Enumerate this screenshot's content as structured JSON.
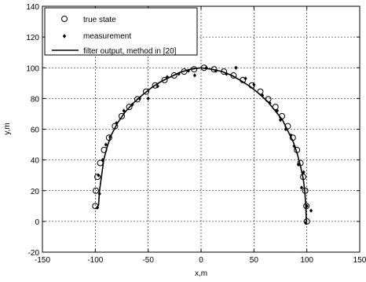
{
  "chart_data": {
    "type": "scatter",
    "xlabel": "x,m",
    "ylabel": "y,m",
    "xlim": [
      -150,
      150
    ],
    "ylim": [
      -20,
      140
    ],
    "xticks": [
      -150,
      -100,
      -50,
      0,
      50,
      100,
      150
    ],
    "yticks": [
      -20,
      0,
      20,
      40,
      60,
      80,
      100,
      120,
      140
    ],
    "xtick_labels": [
      "-150",
      "-100",
      "-50",
      "0",
      "50",
      "100",
      "150"
    ],
    "ytick_labels": [
      "-20",
      "0",
      "20",
      "40",
      "60",
      "80",
      "100",
      "120",
      "140"
    ],
    "grid": true,
    "legend_placement": "top-left",
    "series": [
      {
        "name": "true state",
        "marker": "circle",
        "points": [
          [
            -100,
            10
          ],
          [
            -99.5,
            20
          ],
          [
            -98,
            29
          ],
          [
            -95.4,
            38
          ],
          [
            -91.7,
            46.5
          ],
          [
            -87,
            54.5
          ],
          [
            -81.4,
            62
          ],
          [
            -75,
            68.5
          ],
          [
            -67.9,
            74.5
          ],
          [
            -60.2,
            79.5
          ],
          [
            -52,
            84.5
          ],
          [
            -43.4,
            88.5
          ],
          [
            -34.5,
            92
          ],
          [
            -25.4,
            95
          ],
          [
            -16,
            97.5
          ],
          [
            -6.6,
            99
          ],
          [
            2.9,
            100
          ],
          [
            12.3,
            99
          ],
          [
            21.6,
            97.5
          ],
          [
            30.7,
            95
          ],
          [
            39.5,
            92
          ],
          [
            48,
            88.5
          ],
          [
            56,
            84.5
          ],
          [
            63.5,
            79.5
          ],
          [
            70.3,
            74.5
          ],
          [
            76.5,
            68.5
          ],
          [
            82,
            62
          ],
          [
            86.7,
            54.5
          ],
          [
            90.7,
            46.5
          ],
          [
            94,
            38
          ],
          [
            96.6,
            29
          ],
          [
            98.5,
            20
          ],
          [
            99.6,
            10
          ],
          [
            100,
            0
          ]
        ]
      },
      {
        "name": "measurement",
        "marker": "dot",
        "points": [
          [
            -98,
            9
          ],
          [
            -96,
            18
          ],
          [
            -97,
            30
          ],
          [
            -93,
            40
          ],
          [
            -90,
            50
          ],
          [
            -86,
            55
          ],
          [
            -80,
            64
          ],
          [
            -73,
            72
          ],
          [
            -65,
            76
          ],
          [
            -58,
            80
          ],
          [
            -50,
            80
          ],
          [
            -41,
            88
          ],
          [
            -32,
            94
          ],
          [
            -21,
            96
          ],
          [
            -12,
            98
          ],
          [
            -6,
            95
          ],
          [
            5,
            100
          ],
          [
            14,
            98
          ],
          [
            24,
            96
          ],
          [
            33,
            100
          ],
          [
            42,
            93
          ],
          [
            50,
            89
          ],
          [
            58,
            82
          ],
          [
            65,
            77
          ],
          [
            72,
            72
          ],
          [
            75,
            66
          ],
          [
            80,
            60
          ],
          [
            85,
            56
          ],
          [
            88,
            49
          ],
          [
            92,
            37
          ],
          [
            97,
            32
          ],
          [
            95,
            22
          ],
          [
            100,
            10
          ],
          [
            104,
            7
          ],
          [
            99,
            -1
          ]
        ]
      },
      {
        "name": "filter output, method in [20]",
        "marker": "line",
        "points": [
          [
            -97,
            10
          ],
          [
            -96,
            20
          ],
          [
            -94,
            30
          ],
          [
            -92,
            40
          ],
          [
            -89,
            48
          ],
          [
            -85,
            56
          ],
          [
            -79,
            64
          ],
          [
            -72,
            71
          ],
          [
            -64,
            77
          ],
          [
            -56,
            82
          ],
          [
            -47,
            87
          ],
          [
            -38,
            91
          ],
          [
            -29,
            94
          ],
          [
            -20,
            97
          ],
          [
            -10,
            99
          ],
          [
            0,
            100
          ],
          [
            10,
            99
          ],
          [
            20,
            97.5
          ],
          [
            29,
            95
          ],
          [
            38,
            91.5
          ],
          [
            47,
            87.5
          ],
          [
            55,
            83
          ],
          [
            63,
            78
          ],
          [
            70,
            72
          ],
          [
            77,
            66
          ],
          [
            82,
            59
          ],
          [
            87,
            52
          ],
          [
            91,
            44
          ],
          [
            94,
            36
          ],
          [
            96.5,
            28
          ],
          [
            98,
            20
          ],
          [
            98.8,
            12
          ],
          [
            99.3,
            5
          ],
          [
            99.5,
            0
          ]
        ]
      }
    ]
  }
}
